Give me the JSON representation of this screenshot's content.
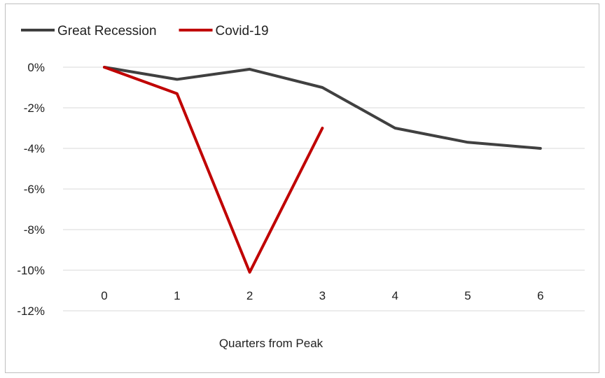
{
  "chart_data": {
    "type": "line",
    "title": "",
    "xlabel": "Quarters from Peak",
    "ylabel": "",
    "x": [
      0,
      1,
      2,
      3,
      4,
      5,
      6
    ],
    "ylim": [
      -12,
      0
    ],
    "y_ticks": [
      0,
      -2,
      -4,
      -6,
      -8,
      -10,
      -12
    ],
    "y_tick_labels": [
      "0%",
      "-2%",
      "-4%",
      "-6%",
      "-8%",
      "-10%",
      "-12%"
    ],
    "x_tick_labels": [
      "0",
      "1",
      "2",
      "3",
      "4",
      "5",
      "6"
    ],
    "grid": "horizontal",
    "legend_position": "top-left",
    "series": [
      {
        "name": "Great Recession",
        "color": "#404040",
        "x": [
          0,
          1,
          2,
          3,
          4,
          5,
          6
        ],
        "values": [
          0,
          -0.6,
          -0.1,
          -1.0,
          -3.0,
          -3.7,
          -4.0
        ]
      },
      {
        "name": "Covid-19",
        "color": "#c00000",
        "x": [
          0,
          1,
          2,
          3
        ],
        "values": [
          0,
          -1.3,
          -10.1,
          -3.0
        ]
      }
    ]
  }
}
